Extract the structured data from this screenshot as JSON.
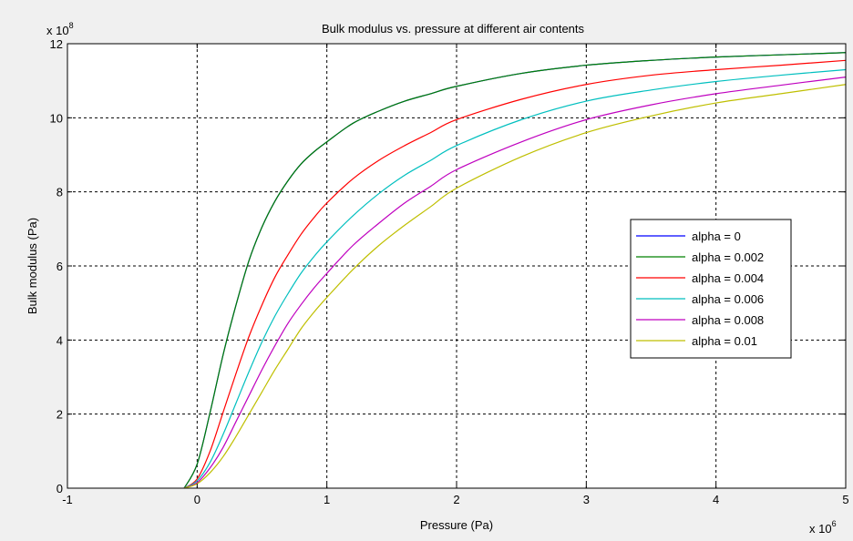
{
  "chart_data": {
    "type": "line",
    "title": "Bulk modulus vs. pressure at different air contents",
    "xlabel": "Pressure (Pa)",
    "ylabel": "Bulk modulus (Pa)",
    "x_multiplier": "x 10^6",
    "y_multiplier": "x 10^8",
    "x_multiplier_base": "x 10",
    "x_multiplier_exp": "6",
    "y_multiplier_base": "x 10",
    "y_multiplier_exp": "8",
    "xlim": [
      -1,
      5
    ],
    "ylim": [
      0,
      12
    ],
    "xticks": [
      "-1",
      "0",
      "1",
      "2",
      "3",
      "4",
      "5"
    ],
    "yticks": [
      "0",
      "2",
      "4",
      "6",
      "8",
      "10",
      "12"
    ],
    "grid": true,
    "legend_position": "right",
    "series": [
      {
        "name": "alpha = 0",
        "color": "#0000ff",
        "x": [
          -0.1,
          0.0,
          0.1,
          0.2,
          0.3,
          0.4,
          0.5,
          0.6,
          0.7,
          0.8,
          0.9,
          1.0,
          1.2,
          1.4,
          1.6,
          1.8,
          2.0,
          2.5,
          3.0,
          3.5,
          4.0,
          4.5,
          5.0
        ],
        "y": [
          0,
          0.65,
          2.05,
          3.6,
          4.95,
          6.15,
          7.05,
          7.75,
          8.3,
          8.75,
          9.08,
          9.35,
          9.85,
          10.18,
          10.45,
          10.65,
          10.85,
          11.2,
          11.42,
          11.55,
          11.64,
          11.7,
          11.76
        ]
      },
      {
        "name": "alpha = 0.002",
        "color": "#008000",
        "x": [
          -0.1,
          0.0,
          0.1,
          0.2,
          0.3,
          0.4,
          0.5,
          0.6,
          0.7,
          0.8,
          0.9,
          1.0,
          1.2,
          1.4,
          1.6,
          1.8,
          2.0,
          2.5,
          3.0,
          3.5,
          4.0,
          4.5,
          5.0
        ],
        "y": [
          0,
          0.65,
          2.05,
          3.6,
          4.95,
          6.15,
          7.05,
          7.75,
          8.3,
          8.75,
          9.08,
          9.35,
          9.85,
          10.18,
          10.45,
          10.65,
          10.85,
          11.2,
          11.42,
          11.55,
          11.64,
          11.7,
          11.76
        ]
      },
      {
        "name": "alpha = 0.004",
        "color": "#ff0000",
        "x": [
          -0.1,
          0.0,
          0.1,
          0.2,
          0.3,
          0.4,
          0.5,
          0.6,
          0.7,
          0.8,
          0.9,
          1.0,
          1.2,
          1.4,
          1.6,
          1.8,
          2.0,
          2.5,
          3.0,
          3.5,
          4.0,
          4.5,
          5.0
        ],
        "y": [
          0,
          0.25,
          1.0,
          2.05,
          3.1,
          4.1,
          4.95,
          5.7,
          6.3,
          6.85,
          7.3,
          7.7,
          8.35,
          8.85,
          9.25,
          9.6,
          9.95,
          10.5,
          10.9,
          11.15,
          11.3,
          11.42,
          11.55
        ]
      },
      {
        "name": "alpha = 0.006",
        "color": "#00bfbf",
        "x": [
          -0.1,
          0.0,
          0.1,
          0.2,
          0.3,
          0.4,
          0.5,
          0.6,
          0.7,
          0.8,
          0.9,
          1.0,
          1.2,
          1.4,
          1.6,
          1.8,
          2.0,
          2.5,
          3.0,
          3.5,
          4.0,
          4.5,
          5.0
        ],
        "y": [
          0,
          0.2,
          0.7,
          1.45,
          2.3,
          3.15,
          3.95,
          4.65,
          5.25,
          5.8,
          6.25,
          6.65,
          7.35,
          7.95,
          8.45,
          8.85,
          9.25,
          9.95,
          10.45,
          10.75,
          10.98,
          11.15,
          11.3
        ]
      },
      {
        "name": "alpha = 0.008",
        "color": "#bf00bf",
        "x": [
          -0.1,
          0.0,
          0.1,
          0.2,
          0.3,
          0.4,
          0.5,
          0.6,
          0.7,
          0.8,
          0.9,
          1.0,
          1.2,
          1.4,
          1.6,
          1.8,
          2.0,
          2.5,
          3.0,
          3.5,
          4.0,
          4.5,
          5.0
        ],
        "y": [
          0,
          0.15,
          0.55,
          1.1,
          1.8,
          2.5,
          3.2,
          3.85,
          4.45,
          4.95,
          5.4,
          5.8,
          6.55,
          7.15,
          7.7,
          8.15,
          8.6,
          9.35,
          9.95,
          10.35,
          10.65,
          10.88,
          11.1
        ]
      },
      {
        "name": "alpha = 0.01",
        "color": "#bfbf00",
        "x": [
          -0.1,
          0.0,
          0.1,
          0.2,
          0.3,
          0.4,
          0.5,
          0.6,
          0.7,
          0.8,
          0.9,
          1.0,
          1.2,
          1.4,
          1.6,
          1.8,
          2.0,
          2.5,
          3.0,
          3.5,
          4.0,
          4.5,
          5.0
        ],
        "y": [
          0,
          0.12,
          0.42,
          0.85,
          1.4,
          2.0,
          2.6,
          3.2,
          3.75,
          4.3,
          4.75,
          5.15,
          5.9,
          6.55,
          7.1,
          7.6,
          8.1,
          8.95,
          9.6,
          10.05,
          10.4,
          10.65,
          10.9
        ]
      }
    ]
  }
}
